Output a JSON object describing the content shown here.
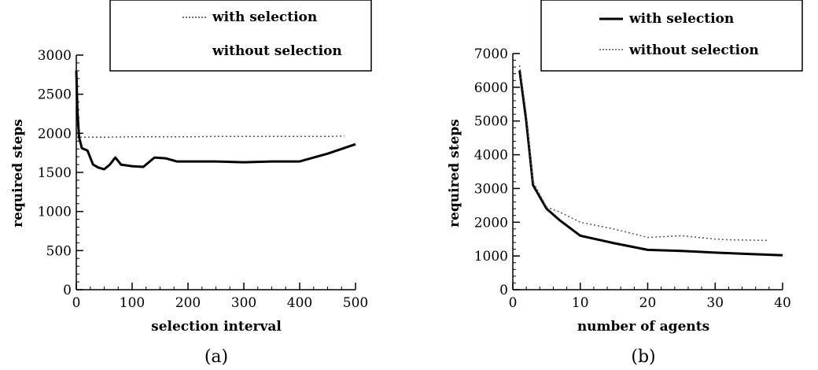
{
  "chart_data": [
    {
      "type": "line",
      "panel_label": "(a)",
      "xlabel": "selection interval",
      "ylabel": "required steps",
      "xlim": [
        0,
        500
      ],
      "ylim": [
        0,
        3000
      ],
      "x_ticks": [
        0,
        100,
        200,
        300,
        400,
        500
      ],
      "y_ticks": [
        0,
        500,
        1000,
        1500,
        2000,
        2500,
        3000
      ],
      "legend_position": "top",
      "series": [
        {
          "name": "with selection",
          "style": "dotted",
          "x": [
            0,
            10,
            50,
            100,
            150,
            200,
            250,
            300,
            350,
            400,
            450,
            480
          ],
          "y": [
            1950,
            1950,
            1950,
            1955,
            1955,
            1955,
            1960,
            1960,
            1960,
            1960,
            1960,
            1965
          ]
        },
        {
          "name": "without selection",
          "style": "solid",
          "x": [
            0,
            2,
            5,
            10,
            20,
            30,
            40,
            50,
            60,
            70,
            80,
            100,
            120,
            140,
            160,
            180,
            200,
            250,
            300,
            350,
            400,
            450,
            500
          ],
          "y": [
            2800,
            2300,
            1950,
            1810,
            1780,
            1600,
            1560,
            1540,
            1600,
            1690,
            1600,
            1580,
            1570,
            1690,
            1680,
            1640,
            1640,
            1640,
            1630,
            1640,
            1640,
            1740,
            1860
          ]
        }
      ]
    },
    {
      "type": "line",
      "panel_label": "(b)",
      "xlabel": "number of agents",
      "ylabel": "required steps",
      "xlim": [
        0,
        40
      ],
      "ylim": [
        0,
        7000
      ],
      "x_ticks": [
        0,
        10,
        20,
        30,
        40
      ],
      "y_ticks": [
        0,
        1000,
        2000,
        3000,
        4000,
        5000,
        6000,
        7000
      ],
      "legend_position": "top",
      "series": [
        {
          "name": "with selection",
          "style": "solid",
          "x": [
            1,
            2,
            3,
            5,
            7,
            10,
            15,
            20,
            25,
            30,
            35,
            40
          ],
          "y": [
            6500,
            5000,
            3100,
            2400,
            2050,
            1600,
            1380,
            1180,
            1150,
            1100,
            1060,
            1020
          ]
        },
        {
          "name": "without selection",
          "style": "dotted",
          "x": [
            1,
            2,
            3,
            5,
            7,
            10,
            15,
            20,
            25,
            30,
            32,
            35,
            38
          ],
          "y": [
            6650,
            5200,
            3200,
            2450,
            2300,
            2000,
            1800,
            1550,
            1600,
            1500,
            1480,
            1470,
            1460
          ]
        }
      ]
    }
  ]
}
